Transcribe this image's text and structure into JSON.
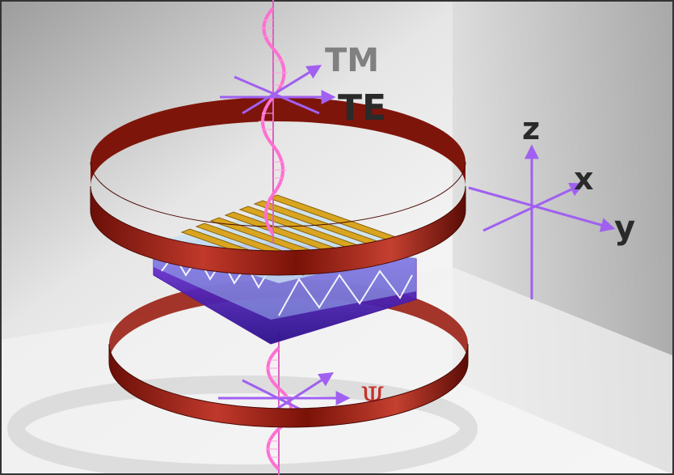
{
  "labels": {
    "tm": "TM",
    "te": "TE",
    "axis_z": "z",
    "axis_x": "x",
    "axis_y": "y",
    "psi": "Ψ"
  },
  "colors": {
    "ring": "#8e1a10",
    "ring_light": "#d84a3a",
    "wave": "#ff6fd0",
    "arrow": "#a060f0",
    "gold": "#d9a520",
    "substrate": "#6a2bd6",
    "layer": "#8fc9e8",
    "psi": "#c8302a"
  },
  "icons": [
    "helmholtz-ring-upper",
    "helmholtz-ring-lower",
    "light-wave",
    "grating-sample",
    "axes-triad",
    "polarization-arrows",
    "polarization-rotation-arrows"
  ]
}
